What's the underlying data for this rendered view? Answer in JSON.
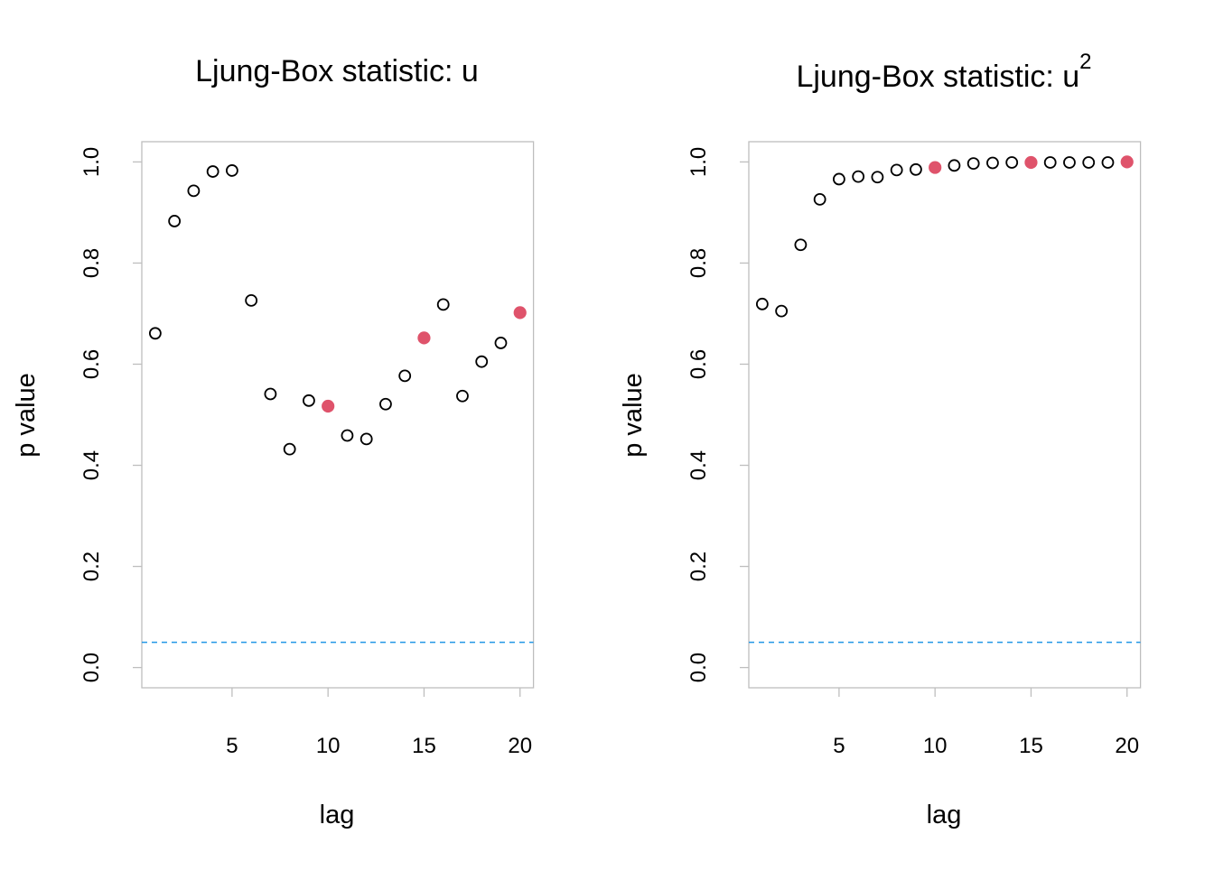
{
  "chart_data": [
    {
      "type": "scatter",
      "title": "Ljung-Box statistic: u",
      "title_superscript": "",
      "xlabel": "lag",
      "ylabel": "p value",
      "xlim": [
        0.3,
        20.7
      ],
      "ylim": [
        -0.04,
        1.04
      ],
      "xticks": [
        5,
        10,
        15,
        20
      ],
      "xtick_labels": [
        "5",
        "10",
        "15",
        "20"
      ],
      "yticks": [
        0.0,
        0.2,
        0.4,
        0.6,
        0.8,
        1.0
      ],
      "ytick_labels": [
        "0.0",
        "0.2",
        "0.4",
        "0.6",
        "0.8",
        "1.0"
      ],
      "grid": false,
      "reference_line": {
        "y": 0.05,
        "style": "dashed",
        "color": "#2297E6"
      },
      "highlight_color": "#DF536B",
      "x": [
        1,
        2,
        3,
        4,
        5,
        6,
        7,
        8,
        9,
        10,
        11,
        12,
        13,
        14,
        15,
        16,
        17,
        18,
        19,
        20
      ],
      "y": [
        0.661,
        0.883,
        0.943,
        0.981,
        0.983,
        0.726,
        0.541,
        0.432,
        0.528,
        0.517,
        0.459,
        0.452,
        0.521,
        0.577,
        0.652,
        0.718,
        0.537,
        0.605,
        0.642,
        0.702
      ],
      "highlighted_lags": [
        10,
        15,
        20
      ]
    },
    {
      "type": "scatter",
      "title": "Ljung-Box statistic: u",
      "title_superscript": "2",
      "xlabel": "lag",
      "ylabel": "p value",
      "xlim": [
        0.3,
        20.7
      ],
      "ylim": [
        -0.04,
        1.04
      ],
      "xticks": [
        5,
        10,
        15,
        20
      ],
      "xtick_labels": [
        "5",
        "10",
        "15",
        "20"
      ],
      "yticks": [
        0.0,
        0.2,
        0.4,
        0.6,
        0.8,
        1.0
      ],
      "ytick_labels": [
        "0.0",
        "0.2",
        "0.4",
        "0.6",
        "0.8",
        "1.0"
      ],
      "grid": false,
      "reference_line": {
        "y": 0.05,
        "style": "dashed",
        "color": "#2297E6"
      },
      "highlight_color": "#DF536B",
      "x": [
        1,
        2,
        3,
        4,
        5,
        6,
        7,
        8,
        9,
        10,
        11,
        12,
        13,
        14,
        15,
        16,
        17,
        18,
        19,
        20
      ],
      "y": [
        0.719,
        0.705,
        0.836,
        0.926,
        0.966,
        0.971,
        0.97,
        0.984,
        0.985,
        0.989,
        0.993,
        0.997,
        0.998,
        0.999,
        0.999,
        0.999,
        0.999,
        0.999,
        0.999,
        1.0
      ],
      "highlighted_lags": [
        10,
        15,
        20
      ]
    }
  ]
}
